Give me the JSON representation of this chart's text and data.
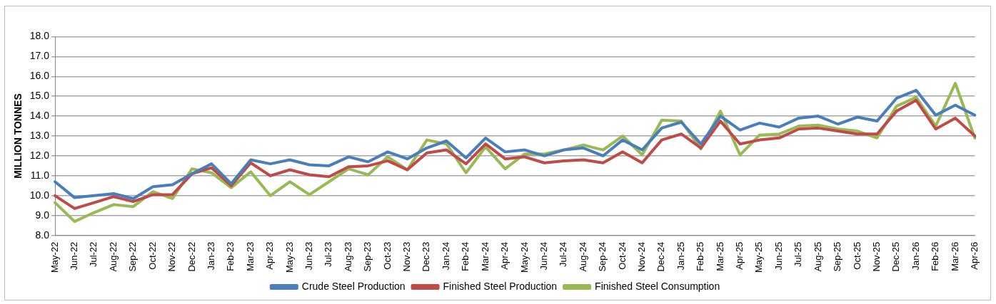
{
  "chart_data": {
    "type": "line",
    "ylabel": "MILLION TONNES",
    "categories": [
      "May-22",
      "Jun-22",
      "Jul-22",
      "Aug-22",
      "Sep-22",
      "Oct-22",
      "Nov-22",
      "Dec-22",
      "Jan-23",
      "Feb-23",
      "Mar-23",
      "Apr-23",
      "May-23",
      "Jun-23",
      "Jul-23",
      "Aug-23",
      "Sep-23",
      "Oct-23",
      "Nov-23",
      "Dec-23",
      "Jan-24",
      "Feb-24",
      "Mar-24",
      "Apr-24",
      "May-24",
      "Jun-24",
      "Jul-24",
      "Aug-24",
      "Sep-24",
      "Oct-24",
      "Nov-24",
      "Dec-24",
      "Jan-25",
      "Feb-25",
      "Mar-25",
      "Apr-25",
      "May-25",
      "Jun-25",
      "Jul-25",
      "Aug-25",
      "Sep-25",
      "Oct-25",
      "Nov-25",
      "Dec-25",
      "Jan-26",
      "Feb-26",
      "Mar-26",
      "Apr-26"
    ],
    "series": [
      {
        "name": "Crude Steel Production",
        "color": "#4a7ebb",
        "values": [
          10.7,
          9.9,
          10.0,
          10.1,
          9.85,
          10.45,
          10.55,
          11.1,
          11.6,
          10.6,
          11.8,
          11.6,
          11.8,
          11.55,
          11.5,
          11.95,
          11.7,
          12.2,
          11.85,
          12.4,
          12.75,
          11.9,
          12.9,
          12.2,
          12.3,
          12.0,
          12.3,
          12.4,
          12.0,
          12.8,
          12.3,
          13.4,
          13.7,
          12.6,
          14.0,
          13.3,
          13.65,
          13.45,
          13.9,
          14.0,
          13.6,
          13.95,
          13.75,
          14.9,
          15.3,
          14.05,
          14.55,
          14.05
        ]
      },
      {
        "name": "Finished Steel Production",
        "color": "#be4b48",
        "values": [
          10.0,
          9.35,
          9.65,
          9.95,
          9.7,
          10.05,
          10.05,
          11.1,
          11.4,
          10.5,
          11.65,
          11.0,
          11.3,
          11.05,
          10.95,
          11.45,
          11.5,
          11.75,
          11.3,
          12.15,
          12.3,
          11.6,
          12.6,
          11.85,
          11.95,
          11.65,
          11.75,
          11.8,
          11.65,
          12.2,
          11.65,
          12.8,
          13.1,
          12.4,
          13.75,
          12.6,
          12.8,
          12.9,
          13.35,
          13.4,
          13.25,
          13.1,
          13.1,
          14.25,
          14.8,
          13.35,
          13.9,
          13.0
        ]
      },
      {
        "name": "Finished Steel Consumption",
        "color": "#98b954",
        "values": [
          9.65,
          8.7,
          9.15,
          9.55,
          9.45,
          10.2,
          9.85,
          11.35,
          11.15,
          10.4,
          11.2,
          10.0,
          10.7,
          10.05,
          10.7,
          11.35,
          11.05,
          11.95,
          11.3,
          12.8,
          12.6,
          11.15,
          12.45,
          11.35,
          12.1,
          12.1,
          12.3,
          12.55,
          12.3,
          13.0,
          12.05,
          13.8,
          13.75,
          12.35,
          14.25,
          12.05,
          13.05,
          13.1,
          13.5,
          13.55,
          13.35,
          13.25,
          12.9,
          14.5,
          14.95,
          13.5,
          15.65,
          12.9
        ]
      }
    ],
    "ylim": [
      8,
      18
    ],
    "yticks": [
      {
        "value": 8,
        "label": "8.0"
      },
      {
        "value": 9,
        "label": "9.0"
      },
      {
        "value": 10,
        "label": "10.0"
      },
      {
        "value": 11,
        "label": "11.0"
      },
      {
        "value": 12,
        "label": "12.0"
      },
      {
        "value": 13,
        "label": "13.0"
      },
      {
        "value": 14,
        "label": "14.0"
      },
      {
        "value": 15,
        "label": "15.0"
      },
      {
        "value": 16,
        "label": "16.0"
      },
      {
        "value": 17,
        "label": "17.0"
      },
      {
        "value": 18,
        "label": "18.0"
      }
    ],
    "grid": "y",
    "legend": "bottom",
    "marker": "none",
    "line_style": "solid"
  }
}
